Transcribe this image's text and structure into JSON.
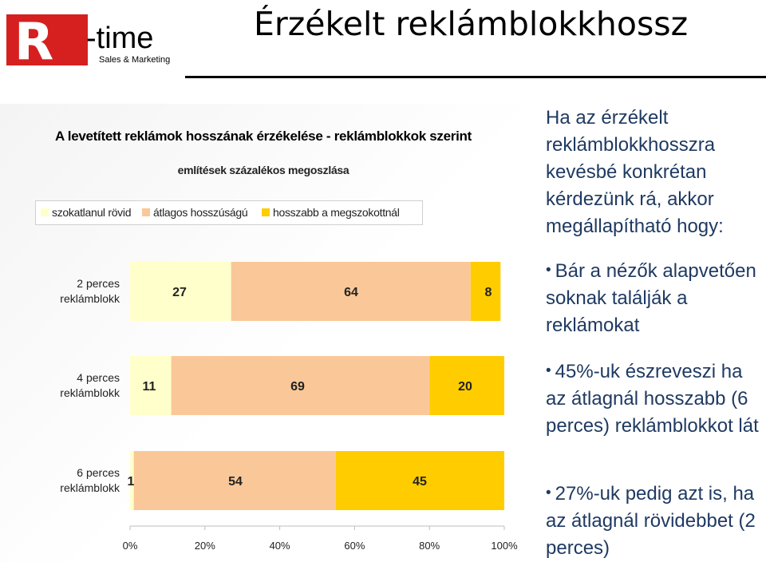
{
  "header": {
    "logo_letter": "R",
    "logo_word": "-time",
    "logo_tagline": "Sales & Marketing",
    "title": "Érzékelt reklámblokkhossz"
  },
  "chart_data": {
    "type": "bar",
    "orientation": "horizontal",
    "stacked": true,
    "title": "A levetített reklámok hosszának érzékelése - reklámblokkok szerint",
    "subtitle": "említések százalékos megoszlása",
    "categories": [
      "2 perces reklámblokk",
      "4 perces reklámblokk",
      "6 perces reklámblokk"
    ],
    "series": [
      {
        "name": "szokatlanul rövid",
        "color": "#ffffcc",
        "values": [
          27,
          11,
          1
        ]
      },
      {
        "name": "átlagos hosszúságú",
        "color": "#fac898",
        "values": [
          64,
          69,
          54
        ]
      },
      {
        "name": "hosszabb a megszokottnál",
        "color": "#ffcc00",
        "values": [
          8,
          20,
          45
        ]
      }
    ],
    "xlim": [
      0,
      100
    ],
    "x_ticks": [
      "0%",
      "20%",
      "40%",
      "60%",
      "80%",
      "100%"
    ],
    "legend_position": "top",
    "grid": false
  },
  "text": {
    "intro": "Ha az érzékelt reklámblokkhosszra kevésbé konkrétan kérdezünk rá, akkor megállapítható hogy:",
    "bullets": [
      "Bár a nézők alapvetően soknak találják a reklámokat",
      "45%-uk észreveszi ha az átlagnál hosszabb (6 perces) reklámblokkot lát",
      "27%-uk pedig azt is, ha az átlagnál rövidebbet (2 perces)"
    ]
  },
  "colors": {
    "logo_red": "#d6201f",
    "text_blue": "#1f3a62"
  }
}
